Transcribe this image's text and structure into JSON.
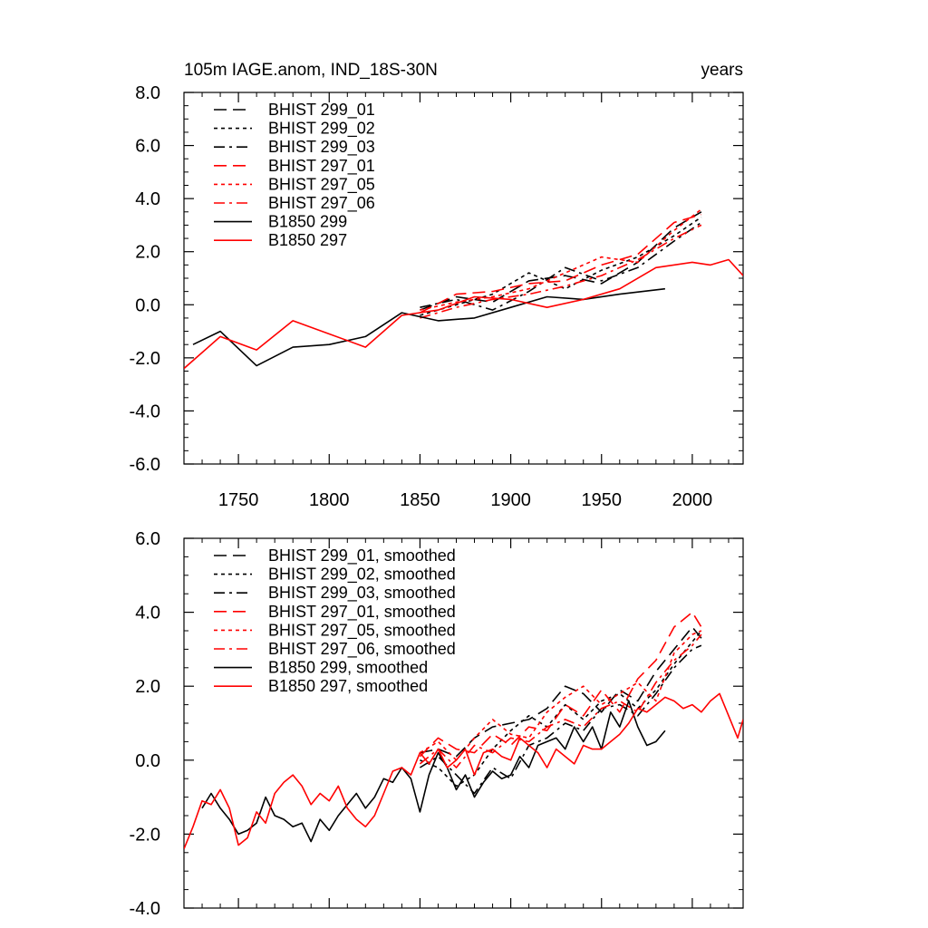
{
  "panels": [
    {
      "title_left": "105m IAGE.anom, IND_18S-30N",
      "title_right": "years",
      "chart_data": {
        "type": "line",
        "title": "105m IAGE.anom, IND_18S-30N",
        "units": "years",
        "xlim": [
          1720,
          2028
        ],
        "ylim": [
          -6,
          8
        ],
        "xticks": [
          1750,
          1800,
          1850,
          1900,
          1950,
          2000
        ],
        "xtick_labels": [
          "1750",
          "1800",
          "1850",
          "1900",
          "1950",
          "2000"
        ],
        "yticks": [
          -6,
          -4,
          -2,
          0,
          2,
          4,
          6,
          8
        ],
        "ytick_labels": [
          "-6.0",
          "-4.0",
          "-2.0",
          "0.0",
          "2.0",
          "4.0",
          "6.0",
          "8.0"
        ],
        "series": [
          {
            "name": "BHIST 299_01",
            "color": "#000000",
            "dash": "dash",
            "x": [
              1850,
              1870,
              1890,
              1910,
              1930,
              1950,
              1970,
              1990,
              2005
            ],
            "values": [
              -0.2,
              0.3,
              0.1,
              0.9,
              1.1,
              0.8,
              1.6,
              2.9,
              3.5
            ]
          },
          {
            "name": "BHIST 299_02",
            "color": "#000000",
            "dash": "dot",
            "x": [
              1850,
              1870,
              1890,
              1910,
              1930,
              1950,
              1970,
              1990,
              2005
            ],
            "values": [
              -0.4,
              0.0,
              0.4,
              1.2,
              0.6,
              1.3,
              1.8,
              2.6,
              3.3
            ]
          },
          {
            "name": "BHIST 299_03",
            "color": "#000000",
            "dash": "dashdot",
            "x": [
              1850,
              1870,
              1890,
              1910,
              1930,
              1950,
              1970,
              1990,
              2005
            ],
            "values": [
              -0.1,
              0.2,
              -0.2,
              0.5,
              1.4,
              0.9,
              1.4,
              2.4,
              3.1
            ]
          },
          {
            "name": "BHIST 297_01",
            "color": "#ff0000",
            "dash": "dash",
            "x": [
              1850,
              1870,
              1890,
              1910,
              1930,
              1950,
              1970,
              1990,
              2005
            ],
            "values": [
              -0.3,
              0.4,
              0.5,
              0.8,
              0.9,
              1.5,
              1.9,
              3.1,
              3.4
            ]
          },
          {
            "name": "BHIST 297_05",
            "color": "#ff0000",
            "dash": "dot",
            "x": [
              1850,
              1870,
              1890,
              1910,
              1930,
              1950,
              1970,
              1990,
              2005
            ],
            "values": [
              -0.2,
              0.1,
              0.3,
              0.6,
              1.2,
              1.8,
              1.6,
              2.8,
              3.6
            ]
          },
          {
            "name": "BHIST 297_06",
            "color": "#ff0000",
            "dash": "dashdot",
            "x": [
              1850,
              1870,
              1890,
              1910,
              1930,
              1950,
              1970,
              1990,
              2005
            ],
            "values": [
              -0.5,
              -0.1,
              0.2,
              0.4,
              0.7,
              1.1,
              1.7,
              2.5,
              3.0
            ]
          },
          {
            "name": "B1850 299",
            "color": "#000000",
            "dash": "solid",
            "x": [
              1725,
              1740,
              1760,
              1780,
              1800,
              1820,
              1840,
              1860,
              1880,
              1900,
              1920,
              1940,
              1960,
              1985
            ],
            "values": [
              -1.5,
              -1.0,
              -2.3,
              -1.6,
              -1.5,
              -1.2,
              -0.3,
              -0.6,
              -0.5,
              -0.1,
              0.3,
              0.2,
              0.4,
              0.6
            ]
          },
          {
            "name": "B1850 297",
            "color": "#ff0000",
            "dash": "solid",
            "x": [
              1720,
              1740,
              1760,
              1780,
              1800,
              1820,
              1840,
              1860,
              1880,
              1900,
              1920,
              1940,
              1960,
              1980,
              2000,
              2010,
              2020,
              2028
            ],
            "values": [
              -2.4,
              -1.2,
              -1.7,
              -0.6,
              -1.1,
              -1.6,
              -0.4,
              -0.2,
              0.3,
              0.2,
              -0.1,
              0.2,
              0.6,
              1.4,
              1.6,
              1.5,
              1.7,
              1.1
            ]
          }
        ]
      }
    },
    {
      "title_left": "",
      "title_right": "",
      "chart_data": {
        "type": "line",
        "title": "",
        "units": "years",
        "xlim": [
          1720,
          2028
        ],
        "ylim": [
          -4,
          6
        ],
        "xticks": [
          1750,
          1800,
          1850,
          1900,
          1950,
          2000
        ],
        "xtick_labels": [
          "",
          "",
          "",
          "",
          "",
          ""
        ],
        "yticks": [
          -4,
          -2,
          0,
          2,
          4,
          6
        ],
        "ytick_labels": [
          "-4.0",
          "-2.0",
          "0.0",
          "2.0",
          "4.0",
          "6.0"
        ],
        "series": [
          {
            "name": "BHIST 299_01, smoothed",
            "color": "#000000",
            "dash": "dash",
            "x": [
              1850,
              1860,
              1870,
              1880,
              1890,
              1900,
              1910,
              1920,
              1930,
              1940,
              1950,
              1960,
              1970,
              1980,
              1990,
              2000,
              2005
            ],
            "values": [
              0.2,
              0.3,
              0.1,
              0.6,
              0.9,
              1.0,
              1.1,
              1.4,
              2.0,
              1.8,
              1.3,
              1.9,
              1.6,
              2.4,
              3.0,
              3.6,
              3.3
            ]
          },
          {
            "name": "BHIST 299_02, smoothed",
            "color": "#000000",
            "dash": "dot",
            "x": [
              1850,
              1860,
              1870,
              1880,
              1890,
              1900,
              1910,
              1920,
              1930,
              1940,
              1950,
              1960,
              1970,
              1980,
              1990,
              2000,
              2005
            ],
            "values": [
              0.0,
              -0.2,
              -0.7,
              -0.4,
              0.3,
              0.8,
              1.2,
              0.9,
              1.5,
              1.1,
              1.6,
              1.8,
              1.4,
              1.9,
              2.6,
              3.2,
              3.5
            ]
          },
          {
            "name": "BHIST 299_03, smoothed",
            "color": "#000000",
            "dash": "dashdot",
            "x": [
              1850,
              1860,
              1870,
              1880,
              1890,
              1900,
              1910,
              1920,
              1930,
              1940,
              1950,
              1960,
              1970,
              1980,
              1990,
              2000,
              2005
            ],
            "values": [
              -0.2,
              0.1,
              -0.4,
              -0.9,
              -0.2,
              -0.5,
              0.4,
              0.6,
              1.0,
              0.8,
              1.4,
              1.5,
              1.2,
              1.8,
              2.5,
              3.0,
              3.1
            ]
          },
          {
            "name": "BHIST 297_01, smoothed",
            "color": "#ff0000",
            "dash": "dash",
            "x": [
              1850,
              1860,
              1870,
              1880,
              1890,
              1900,
              1910,
              1920,
              1930,
              1940,
              1950,
              1960,
              1970,
              1980,
              1990,
              2000,
              2005
            ],
            "values": [
              0.1,
              0.6,
              0.3,
              0.2,
              0.7,
              0.4,
              0.9,
              0.8,
              1.5,
              1.2,
              1.9,
              1.3,
              2.2,
              2.7,
              3.6,
              4.0,
              3.6
            ]
          },
          {
            "name": "BHIST 297_05, smoothed",
            "color": "#ff0000",
            "dash": "dot",
            "x": [
              1850,
              1860,
              1870,
              1880,
              1890,
              1900,
              1910,
              1920,
              1930,
              1940,
              1950,
              1960,
              1970,
              1980,
              1990,
              2000,
              2005
            ],
            "values": [
              0.2,
              0.5,
              0.0,
              0.6,
              1.1,
              0.7,
              0.6,
              1.3,
              1.7,
              2.0,
              1.5,
              1.8,
              2.1,
              1.6,
              2.9,
              3.4,
              3.5
            ]
          },
          {
            "name": "BHIST 297_06, smoothed",
            "color": "#ff0000",
            "dash": "dashdot",
            "x": [
              1850,
              1860,
              1870,
              1880,
              1890,
              1900,
              1910,
              1920,
              1930,
              1940,
              1950,
              1960,
              1970,
              1980,
              1990,
              2000,
              2005
            ],
            "values": [
              -0.1,
              0.3,
              -0.2,
              0.4,
              0.2,
              0.6,
              0.5,
              0.9,
              1.1,
              0.9,
              1.4,
              1.6,
              1.3,
              2.1,
              2.7,
              3.1,
              3.4
            ]
          },
          {
            "name": "B1850 299, smoothed",
            "color": "#000000",
            "dash": "solid",
            "x": [
              1730,
              1735,
              1740,
              1745,
              1750,
              1755,
              1760,
              1765,
              1770,
              1775,
              1780,
              1785,
              1790,
              1795,
              1800,
              1805,
              1810,
              1815,
              1820,
              1825,
              1830,
              1835,
              1840,
              1845,
              1850,
              1855,
              1860,
              1865,
              1870,
              1875,
              1880,
              1885,
              1890,
              1895,
              1900,
              1905,
              1910,
              1915,
              1920,
              1925,
              1930,
              1935,
              1940,
              1945,
              1950,
              1955,
              1960,
              1965,
              1970,
              1975,
              1980,
              1985
            ],
            "values": [
              -1.3,
              -0.9,
              -1.3,
              -1.6,
              -2.0,
              -1.9,
              -1.7,
              -1.0,
              -1.5,
              -1.6,
              -1.8,
              -1.7,
              -2.2,
              -1.6,
              -1.9,
              -1.5,
              -1.2,
              -0.9,
              -1.3,
              -1.0,
              -0.5,
              -0.6,
              -0.2,
              -0.5,
              -1.4,
              -0.4,
              0.2,
              -0.2,
              -0.8,
              -0.4,
              -1.0,
              -0.6,
              -0.3,
              -0.5,
              -0.4,
              0.1,
              -0.2,
              0.4,
              0.5,
              0.6,
              0.3,
              0.9,
              0.5,
              0.9,
              0.3,
              1.3,
              0.9,
              1.6,
              0.9,
              0.4,
              0.5,
              0.8
            ]
          },
          {
            "name": "B1850 297, smoothed",
            "color": "#ff0000",
            "dash": "solid",
            "x": [
              1720,
              1725,
              1730,
              1735,
              1740,
              1745,
              1750,
              1755,
              1760,
              1765,
              1770,
              1775,
              1780,
              1785,
              1790,
              1795,
              1800,
              1805,
              1810,
              1815,
              1820,
              1825,
              1830,
              1835,
              1840,
              1845,
              1850,
              1855,
              1860,
              1865,
              1870,
              1875,
              1880,
              1885,
              1890,
              1895,
              1900,
              1905,
              1910,
              1915,
              1920,
              1925,
              1930,
              1935,
              1940,
              1945,
              1950,
              1955,
              1960,
              1965,
              1970,
              1975,
              1980,
              1985,
              1990,
              1995,
              2000,
              2005,
              2010,
              2015,
              2020,
              2025,
              2028
            ],
            "values": [
              -2.4,
              -1.8,
              -1.1,
              -1.2,
              -0.8,
              -1.3,
              -2.3,
              -2.1,
              -1.4,
              -1.7,
              -0.9,
              -0.6,
              -0.4,
              -0.7,
              -1.2,
              -0.9,
              -1.1,
              -0.7,
              -1.3,
              -1.6,
              -1.8,
              -1.5,
              -0.9,
              -0.3,
              -0.2,
              -0.4,
              0.2,
              -0.1,
              0.3,
              -0.2,
              0.0,
              0.3,
              -0.4,
              0.2,
              0.3,
              0.1,
              0.0,
              0.6,
              0.4,
              0.2,
              -0.2,
              0.3,
              0.1,
              -0.1,
              0.4,
              0.3,
              0.3,
              0.5,
              0.7,
              1.0,
              1.4,
              1.3,
              1.5,
              1.7,
              1.6,
              1.4,
              1.5,
              1.3,
              1.6,
              1.8,
              1.2,
              0.6,
              1.1
            ]
          }
        ]
      }
    }
  ]
}
